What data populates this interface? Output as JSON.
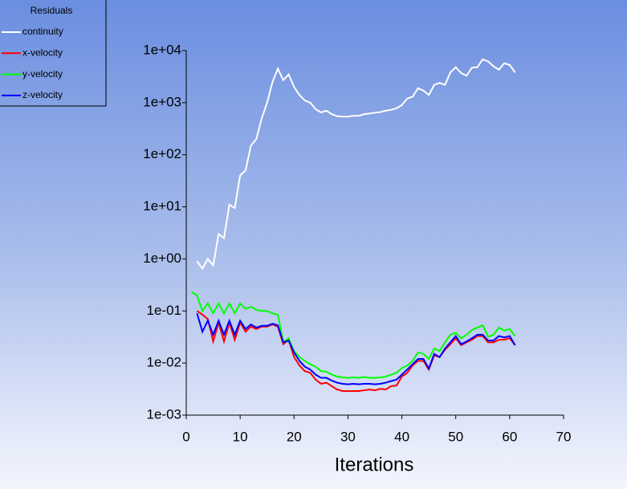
{
  "chart_data": {
    "type": "line",
    "legend_title": "Residuals",
    "x_label": "Iterations",
    "legend_position": "top-left",
    "log_y": true,
    "x": [
      1,
      2,
      3,
      4,
      5,
      6,
      7,
      8,
      9,
      10,
      11,
      12,
      13,
      14,
      15,
      16,
      17,
      18,
      19,
      20,
      21,
      22,
      23,
      24,
      25,
      26,
      27,
      28,
      29,
      30,
      31,
      32,
      33,
      34,
      35,
      36,
      37,
      38,
      39,
      40,
      41,
      42,
      43,
      44,
      45,
      46,
      47,
      48,
      49,
      50,
      51,
      52,
      53,
      54,
      55,
      56,
      57,
      58,
      59,
      60,
      61
    ],
    "xlim": [
      0,
      70
    ],
    "xticks": [
      0,
      10,
      20,
      30,
      40,
      50,
      60,
      70
    ],
    "ylim": [
      0.001,
      10000
    ],
    "yticks": [
      {
        "value": 0.001,
        "label": "1e-03"
      },
      {
        "value": 0.01,
        "label": "1e-02"
      },
      {
        "value": 0.1,
        "label": "1e-01"
      },
      {
        "value": 1,
        "label": "1e+00"
      },
      {
        "value": 10,
        "label": "1e+01"
      },
      {
        "value": 100,
        "label": "1e+02"
      },
      {
        "value": 1000,
        "label": "1e+03"
      },
      {
        "value": 10000,
        "label": "1e+04"
      }
    ],
    "series": [
      {
        "name": "continuity",
        "color": "#ffffff",
        "values": [
          null,
          0.9,
          0.65,
          1.0,
          0.75,
          3.0,
          2.5,
          11,
          9.5,
          40,
          50,
          150,
          200,
          500,
          1000,
          2500,
          4500,
          2700,
          3500,
          2000,
          1400,
          1100,
          1000,
          750,
          650,
          700,
          600,
          550,
          540,
          540,
          560,
          560,
          600,
          620,
          640,
          660,
          700,
          730,
          780,
          900,
          1200,
          1300,
          1900,
          1700,
          1400,
          2200,
          2400,
          2200,
          3800,
          4800,
          3700,
          3300,
          4700,
          4800,
          6800,
          6200,
          5000,
          4300,
          5700,
          5300,
          3800
        ]
      },
      {
        "name": "x-velocity",
        "color": "#ff0000",
        "values": [
          null,
          0.1,
          0.085,
          0.07,
          0.026,
          0.06,
          0.026,
          0.06,
          0.028,
          0.06,
          0.04,
          0.05,
          0.045,
          0.05,
          0.05,
          0.055,
          0.05,
          0.023,
          0.028,
          0.013,
          0.009,
          0.007,
          0.0065,
          0.0048,
          0.004,
          0.0042,
          0.0036,
          0.0031,
          0.0029,
          0.0029,
          0.0029,
          0.0029,
          0.003,
          0.0031,
          0.003,
          0.0032,
          0.0031,
          0.0036,
          0.0037,
          0.0055,
          0.0065,
          0.009,
          0.011,
          0.011,
          0.0075,
          0.014,
          0.013,
          0.018,
          0.023,
          0.03,
          0.022,
          0.025,
          0.028,
          0.033,
          0.033,
          0.025,
          0.025,
          0.028,
          0.028,
          0.03,
          0.022
        ]
      },
      {
        "name": "y-velocity",
        "color": "#00ff00",
        "values": [
          0.23,
          0.2,
          0.1,
          0.14,
          0.09,
          0.14,
          0.09,
          0.14,
          0.09,
          0.14,
          0.11,
          0.12,
          0.105,
          0.1,
          0.1,
          0.09,
          0.085,
          0.025,
          0.03,
          0.017,
          0.013,
          0.011,
          0.0095,
          0.0085,
          0.007,
          0.0068,
          0.006,
          0.0055,
          0.0053,
          0.0052,
          0.0053,
          0.0052,
          0.0054,
          0.0052,
          0.0052,
          0.0053,
          0.0055,
          0.006,
          0.0065,
          0.008,
          0.009,
          0.011,
          0.016,
          0.015,
          0.012,
          0.019,
          0.017,
          0.025,
          0.035,
          0.038,
          0.03,
          0.035,
          0.043,
          0.048,
          0.053,
          0.032,
          0.035,
          0.048,
          0.042,
          0.045,
          0.033
        ]
      },
      {
        "name": "z-velocity",
        "color": "#0000ff",
        "values": [
          null,
          0.09,
          0.04,
          0.065,
          0.035,
          0.065,
          0.035,
          0.065,
          0.035,
          0.065,
          0.045,
          0.055,
          0.048,
          0.052,
          0.052,
          0.057,
          0.053,
          0.025,
          0.027,
          0.016,
          0.011,
          0.0085,
          0.0075,
          0.006,
          0.0052,
          0.0052,
          0.0046,
          0.0042,
          0.004,
          0.0039,
          0.004,
          0.0039,
          0.004,
          0.004,
          0.0039,
          0.004,
          0.0042,
          0.0045,
          0.0048,
          0.006,
          0.0075,
          0.0095,
          0.012,
          0.012,
          0.0078,
          0.015,
          0.013,
          0.019,
          0.025,
          0.033,
          0.023,
          0.026,
          0.03,
          0.035,
          0.035,
          0.027,
          0.027,
          0.033,
          0.031,
          0.033,
          0.022
        ]
      }
    ]
  }
}
